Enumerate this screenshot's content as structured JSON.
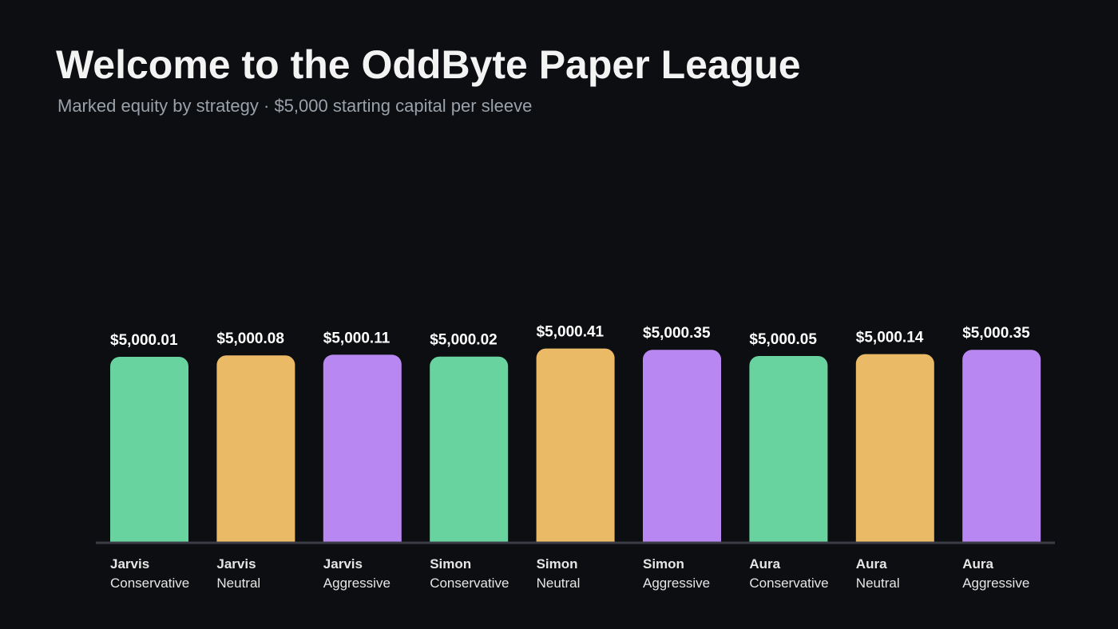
{
  "header": {
    "title": "Welcome to the OddByte Paper League",
    "subtitle": "Marked equity by strategy · $5,000 starting capital per sleeve"
  },
  "colors": {
    "Conservative": "#68d39f",
    "Neutral": "#ebba67",
    "Aggressive": "#b987f2",
    "axis": "#3a3d45",
    "background": "#0d0e11"
  },
  "chart_data": {
    "type": "bar",
    "title": "Welcome to the OddByte Paper League",
    "subtitle": "Marked equity by strategy · $5,000 starting capital per sleeve",
    "categories": [
      {
        "name": "Jarvis",
        "strategy": "Conservative"
      },
      {
        "name": "Jarvis",
        "strategy": "Neutral"
      },
      {
        "name": "Jarvis",
        "strategy": "Aggressive"
      },
      {
        "name": "Simon",
        "strategy": "Conservative"
      },
      {
        "name": "Simon",
        "strategy": "Neutral"
      },
      {
        "name": "Simon",
        "strategy": "Aggressive"
      },
      {
        "name": "Aura",
        "strategy": "Conservative"
      },
      {
        "name": "Aura",
        "strategy": "Neutral"
      },
      {
        "name": "Aura",
        "strategy": "Aggressive"
      }
    ],
    "values": [
      5000.01,
      5000.08,
      5000.11,
      5000.02,
      5000.41,
      5000.35,
      5000.05,
      5000.14,
      5000.35
    ],
    "value_labels": [
      "$5,000.01",
      "$5,000.08",
      "$5,000.11",
      "$5,000.02",
      "$5,000.41",
      "$5,000.35",
      "$5,000.05",
      "$5,000.14",
      "$5,000.35"
    ],
    "xlabel": "",
    "ylabel": "",
    "grid": false,
    "legend": "none"
  }
}
